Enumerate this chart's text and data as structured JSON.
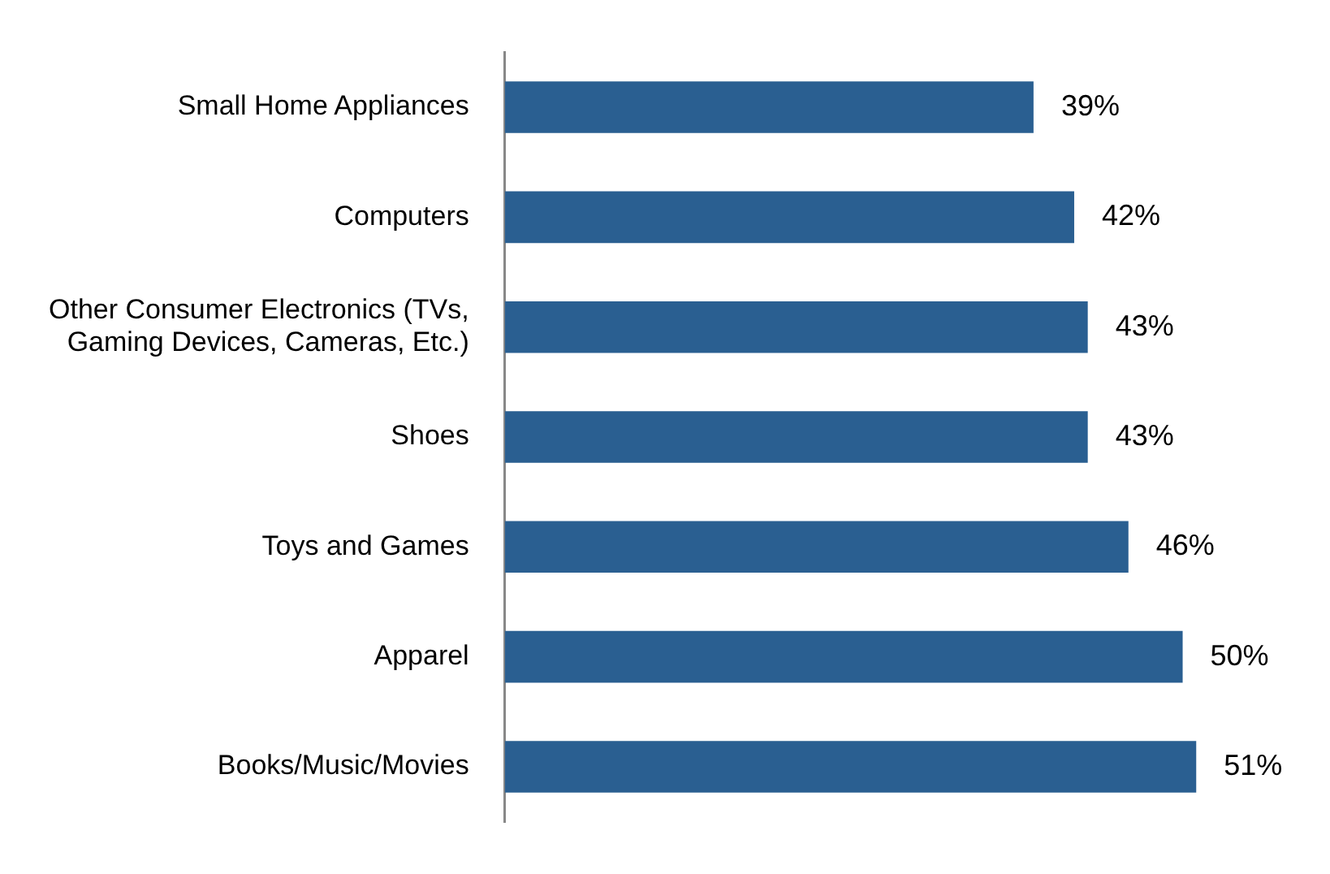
{
  "chart_data": {
    "type": "bar",
    "orientation": "horizontal",
    "categories": [
      "Small Home Appliances",
      "Computers",
      "Other Consumer Electronics (TVs, Gaming Devices, Cameras, Etc.)",
      "Shoes",
      "Toys and Games",
      "Apparel",
      "Books/Music/Movies"
    ],
    "values": [
      39,
      42,
      43,
      43,
      46,
      50,
      51
    ],
    "value_labels": [
      "39%",
      "42%",
      "43%",
      "43%",
      "46%",
      "50%",
      "51%"
    ],
    "color": "#2a5f91",
    "grid": false,
    "legend": false
  }
}
